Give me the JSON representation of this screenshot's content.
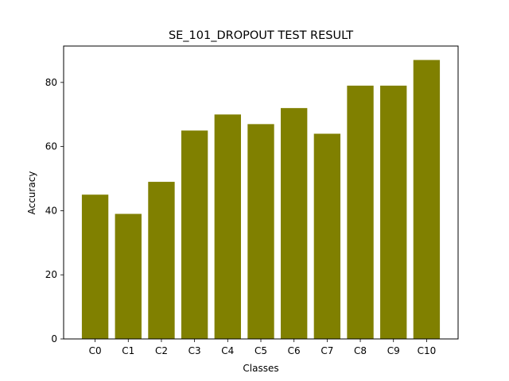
{
  "chart_data": {
    "type": "bar",
    "title": "SE_101_DROPOUT TEST RESULT",
    "xlabel": "Classes",
    "ylabel": "Accuracy",
    "categories": [
      "C0",
      "C1",
      "C2",
      "C3",
      "C4",
      "C5",
      "C6",
      "C7",
      "C8",
      "C9",
      "C10"
    ],
    "values": [
      45,
      39,
      49,
      65,
      70,
      67,
      72,
      64,
      79,
      79,
      87
    ],
    "ylim": [
      0,
      91.35
    ],
    "yticks": [
      0,
      20,
      40,
      60,
      80
    ],
    "bar_color": "#808000",
    "grid": false,
    "legend": "none"
  }
}
